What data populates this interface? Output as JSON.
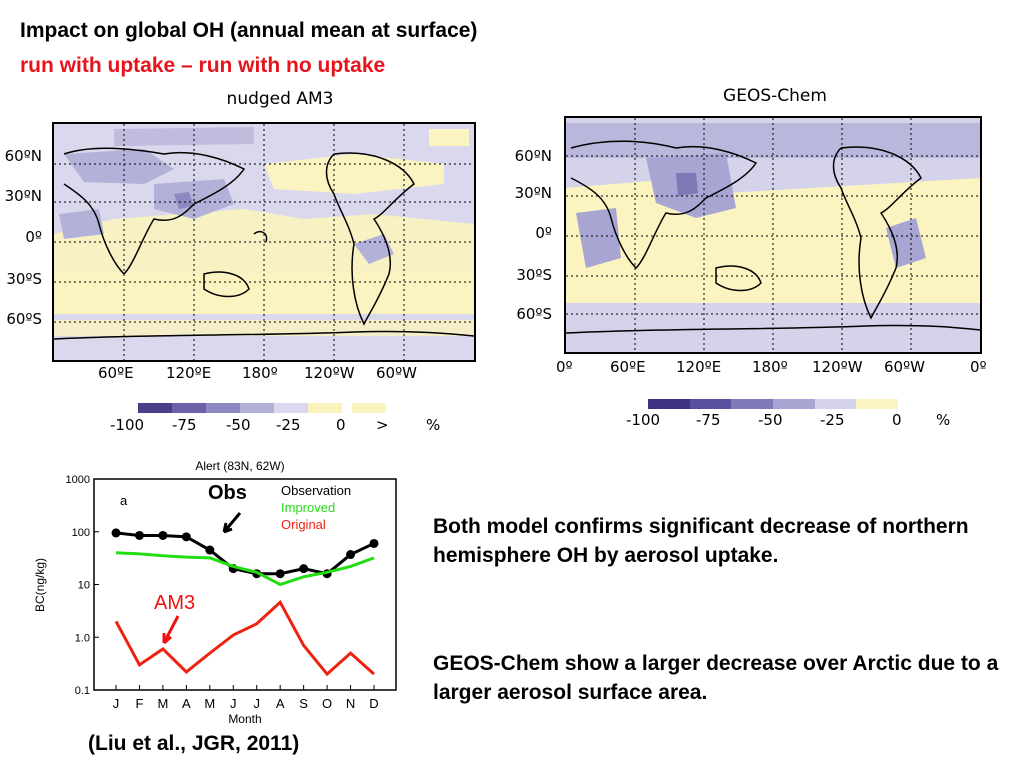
{
  "slide": {
    "title": "Impact on global OH (annual mean at surface)",
    "subtitle": "run with uptake – run with no uptake",
    "subtitle_color": "#e8141c",
    "body_para1": "Both model confirms significant decrease of northern hemisphere OH by aerosol uptake.",
    "body_para2": "GEOS-Chem show a larger decrease over Arctic due to a larger aerosol surface area.",
    "reference": "(Liu et al., JGR, 2011)"
  },
  "left_map": {
    "title": "nudged AM3",
    "lat_labels": [
      "60ºN",
      "30ºN",
      "0º",
      "30ºS",
      "60ºS"
    ],
    "lon_labels": [
      "60ºE",
      "120ºE",
      "180º",
      "120ºW",
      "60ºW"
    ],
    "colorbar_ticks": [
      "-100",
      "-75",
      "-50",
      "-25",
      "0",
      ">",
      "%"
    ],
    "colorbar_colors": [
      "#4b3f8a",
      "#6c62a8",
      "#8d87c2",
      "#b4b1d8",
      "#d9d8ec",
      "#fbf4c0"
    ],
    "over_color": "#fbf4c0"
  },
  "right_map": {
    "title": "GEOS-Chem",
    "lat_labels": [
      "60ºN",
      "30ºN",
      "0º",
      "30ºS",
      "60ºS"
    ],
    "lon_labels": [
      "0º",
      "60ºE",
      "120ºE",
      "180º",
      "120ºW",
      "60ºW",
      "0º"
    ],
    "colorbar_ticks": [
      "-100",
      "-75",
      "-50",
      "-25",
      "0",
      "%"
    ],
    "colorbar_colors": [
      "#3d3382",
      "#5a50a0",
      "#8079b8",
      "#a9a5d2",
      "#d4d3ea",
      "#fbf4c0"
    ]
  },
  "chart_data": {
    "type": "line",
    "title": "Alert  (83N, 62W)",
    "panel_label": "a",
    "xlabel": "Month",
    "ylabel": "BC(ng/kg)",
    "y_scale": "log",
    "ylim": [
      0.1,
      1000
    ],
    "y_ticks": [
      "0.1",
      "1.0",
      "10",
      "100",
      "1000"
    ],
    "categories": [
      "J",
      "F",
      "M",
      "A",
      "M",
      "J",
      "J",
      "A",
      "S",
      "O",
      "N",
      "D"
    ],
    "series": [
      {
        "name": "Observation",
        "color": "#000000",
        "markers": true,
        "values": [
          95,
          85,
          85,
          80,
          45,
          20,
          16,
          16,
          20,
          16,
          37,
          60
        ]
      },
      {
        "name": "Improved",
        "color": "#22dd11",
        "markers": false,
        "values": [
          40,
          38,
          35,
          33,
          32,
          22,
          17,
          10,
          14,
          17,
          22,
          32
        ]
      },
      {
        "name": "Original",
        "color": "#ee2211",
        "markers": false,
        "values": [
          2.0,
          0.3,
          0.6,
          0.22,
          0.5,
          1.1,
          1.8,
          4.6,
          0.7,
          0.2,
          0.5,
          0.2
        ]
      }
    ],
    "legend_position": "top-right",
    "annotations": [
      {
        "text": "Obs",
        "color": "#000000"
      },
      {
        "text": "AM3",
        "color": "#ee1111"
      }
    ]
  }
}
